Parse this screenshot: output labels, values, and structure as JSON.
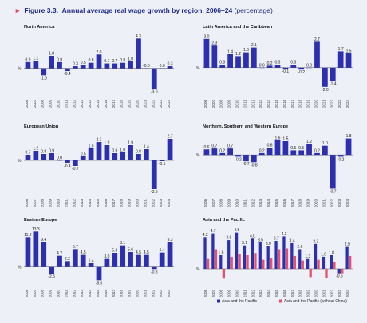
{
  "header": {
    "figure_number": "Figure 3.3.",
    "title": "Annual average real wage growth by region, 2006–24",
    "unit": "(percentage)"
  },
  "colors": {
    "primary": "#2b2fb0",
    "secondary": "#e8506a",
    "title": "#1f2a8a",
    "marker": "#e04a5f"
  },
  "chart_data": [
    {
      "type": "bar",
      "title": "North America",
      "ylabel": "%",
      "categories": [
        "2006",
        "2007",
        "2008",
        "2009",
        "2010",
        "2011",
        "2012",
        "2013",
        "2014",
        "2015",
        "2016",
        "2017",
        "2018",
        "2019",
        "2020",
        "2021",
        "2022",
        "2023",
        "2024"
      ],
      "series": [
        {
          "values": [
            0.9,
            1.1,
            -1.0,
            1.8,
            0.9,
            -0.4,
            0.3,
            0.5,
            0.8,
            2.0,
            0.7,
            0.7,
            0.8,
            1.0,
            4.3,
            -0.0,
            -3.0,
            0.0,
            0.3
          ]
        }
      ],
      "value_labels": [
        "0.9",
        "1.1",
        "-1.0",
        "1.8",
        "0.9",
        "-0.4",
        "0.3",
        "0.5",
        "0.8",
        "2.0",
        "0.7",
        "0.7",
        "0.8",
        "1.0",
        "4.3",
        "-0.0",
        "-3.0",
        "0.0",
        "0.3"
      ],
      "ylim": [
        -3.5,
        4.8
      ]
    },
    {
      "type": "bar",
      "title": "Latin America and the Caribbean",
      "ylabel": "%",
      "categories": [
        "2006",
        "2007",
        "2008",
        "2009",
        "2010",
        "2011",
        "2012",
        "2013",
        "2014",
        "2015",
        "2016",
        "2017",
        "2018",
        "2019",
        "2020",
        "2021",
        "2022",
        "2023",
        "2024"
      ],
      "series": [
        {
          "values": [
            3.0,
            2.3,
            0.3,
            1.4,
            1.2,
            1.6,
            2.1,
            0.0,
            0.2,
            0.3,
            -0.1,
            0.3,
            -0.2,
            0.0,
            2.7,
            -2.0,
            -1.4,
            1.7,
            1.5
          ]
        }
      ],
      "value_labels": [
        "3.0",
        "2.3",
        "0.3",
        "1.4",
        "1.2",
        "1.6",
        "2.1",
        "0.0",
        "0.2",
        "0.3",
        "-0.1",
        "0.3",
        "-0.2",
        "0.0",
        "2.7",
        "-2.0",
        "-1.4",
        "1.7",
        "1.5"
      ],
      "ylim": [
        -2.6,
        3.4
      ]
    },
    {
      "type": "bar",
      "title": "European Union",
      "ylabel": "%",
      "categories": [
        "2006",
        "2007",
        "2008",
        "2009",
        "2010",
        "2011",
        "2012",
        "2013",
        "2014",
        "2015",
        "2016",
        "2017",
        "2018",
        "2019",
        "2020",
        "2021",
        "2022",
        "2023",
        "2024"
      ],
      "series": [
        {
          "values": [
            0.7,
            1.2,
            0.8,
            0.9,
            0.0,
            -0.4,
            -0.7,
            0.5,
            1.5,
            2.3,
            1.9,
            0.9,
            1.0,
            1.9,
            0.8,
            1.4,
            -3.6,
            -0.1,
            2.7
          ]
        }
      ],
      "value_labels": [
        "0.7",
        "1.2",
        "0.8",
        "0.9",
        "0.0",
        "-0.4",
        "-0.7",
        "0.5",
        "1.5",
        "2.3",
        "1.9",
        "0.9",
        "1.0",
        "1.9",
        "0.8",
        "1.4",
        "-3.6",
        "-0.1",
        "2.7"
      ],
      "ylim": [
        -4.0,
        3.2
      ]
    },
    {
      "type": "bar",
      "title": "Northern, Southern and Western Europe",
      "ylabel": "%",
      "categories": [
        "2006",
        "2007",
        "2008",
        "2009",
        "2010",
        "2011",
        "2012",
        "2013",
        "2014",
        "2015",
        "2016",
        "2017",
        "2018",
        "2019",
        "2020",
        "2021",
        "2022",
        "2023",
        "2024"
      ],
      "series": [
        {
          "values": [
            0.6,
            0.7,
            0.2,
            0.7,
            -0.2,
            -0.7,
            -0.8,
            0.2,
            0.8,
            1.6,
            1.5,
            0.5,
            0.5,
            1.2,
            0.2,
            1.0,
            -3.7,
            -0.2,
            1.8
          ]
        }
      ],
      "value_labels": [
        "0.6",
        "0.7",
        "0.2",
        "0.7",
        "-0.2",
        "-0.7",
        "-0.8",
        "0.2",
        "0.8",
        "1.6",
        "1.5",
        "0.5",
        "0.5",
        "1.2",
        "0.2",
        "1.0",
        "-3.7",
        "-0.2",
        "1.8"
      ],
      "ylim": [
        -4.1,
        2.2
      ]
    },
    {
      "type": "bar",
      "title": "Eastern Europe",
      "ylabel": "%",
      "categories": [
        "2006",
        "2007",
        "2008",
        "2009",
        "2010",
        "2011",
        "2012",
        "2013",
        "2014",
        "2015",
        "2016",
        "2017",
        "2018",
        "2019",
        "2020",
        "2021",
        "2022",
        "2023",
        "2024"
      ],
      "series": [
        {
          "values": [
            11.2,
            13.3,
            9.4,
            -2.5,
            4.2,
            2.2,
            6.7,
            4.5,
            1.4,
            -5.0,
            3.0,
            5.3,
            8.1,
            5.6,
            4.5,
            4.5,
            -0.8,
            5.4,
            9.3
          ]
        }
      ],
      "value_labels": [
        "11.2",
        "13.3",
        "9.4",
        "-2.5",
        "4.2",
        "2.2",
        "6.7",
        "4.5",
        "1.4",
        "-5.0",
        "3.0",
        "5.3",
        "8.1",
        "5.6",
        "4.5",
        "4.5",
        "-0.8",
        "5.4",
        "9.3"
      ],
      "ylim": [
        -5.8,
        14.6
      ]
    },
    {
      "type": "bar",
      "title": "Asia and the Pacific",
      "ylabel": "%",
      "categories": [
        "2006",
        "2007",
        "2008",
        "2009",
        "2010",
        "2011",
        "2012",
        "2013",
        "2014",
        "2015",
        "2016",
        "2017",
        "2018",
        "2019",
        "2020",
        "2021",
        "2022",
        "2023",
        "2024"
      ],
      "series": [
        {
          "name": "Asia and the Pacific",
          "values": [
            4.2,
            4.7,
            1.8,
            3.8,
            4.8,
            3.1,
            4.0,
            3.5,
            3.0,
            3.7,
            4.3,
            3.4,
            2.6,
            1.3,
            3.3,
            1.6,
            1.8,
            -0.6,
            2.9
          ]
        },
        {
          "name": "Asia and the Pacific (without China)",
          "values": [
            1.3,
            2.6,
            -1.3,
            1.6,
            2.0,
            1.8,
            2.1,
            1.2,
            1.4,
            2.6,
            2.7,
            1.7,
            1.1,
            -1.1,
            1.2,
            -1.2,
            0.9,
            -0.6,
            1.7
          ]
        }
      ],
      "value_labels": [
        "4.2",
        "4.7",
        "1.8",
        "3.8",
        "4.8",
        "3.1",
        "4.0",
        "3.5",
        "3.0",
        "3.7",
        "4.3",
        "3.4",
        "2.6",
        "1.3",
        "3.3",
        "1.6",
        "1.8",
        "-0.6",
        "2.9"
      ],
      "legend_position": "bottom",
      "ylim": [
        -1.8,
        5.4
      ]
    }
  ]
}
